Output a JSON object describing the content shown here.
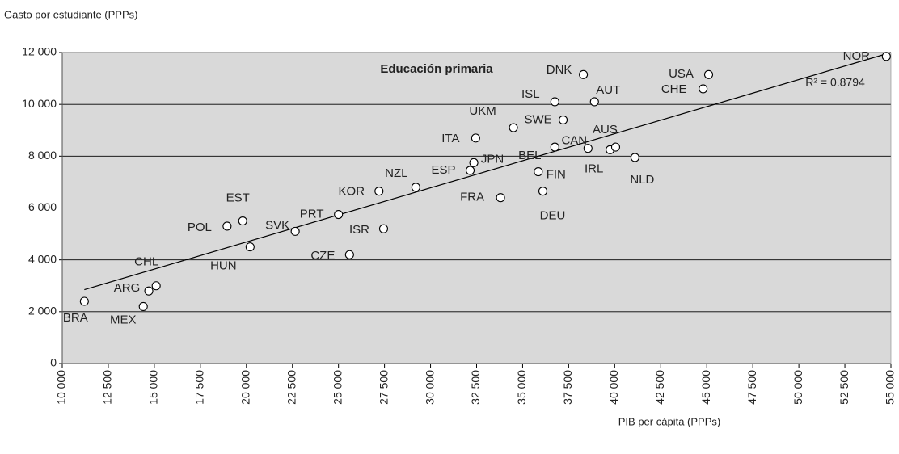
{
  "chart_data": {
    "type": "scatter",
    "y_axis_label": "Gasto por estudiante (PPPs)",
    "x_axis_label": "PIB per cápita (PPPs)",
    "subtitle": "Educación primaria",
    "r2_label": "R² = 0.8794",
    "color": "#ffffff",
    "background": "#d9d9d9",
    "grid": true,
    "labels": [
      "BRA",
      "MEX",
      "ARG",
      "CHL",
      "POL",
      "EST",
      "HUN",
      "SVK",
      "PRT",
      "CZE",
      "ISR",
      "KOR",
      "NZL",
      "ESP",
      "JPN",
      "ITA",
      "FRA",
      "UKM",
      "BEL",
      "FIN",
      "DEU",
      "CAN",
      "IRL",
      "AUS",
      "NLD",
      "SWE",
      "ISL",
      "AUT",
      "DNK",
      "CHE",
      "USA",
      "NOR"
    ],
    "x": [
      11200,
      14400,
      14700,
      15100,
      18950,
      19800,
      20200,
      22650,
      25000,
      25600,
      27450,
      27200,
      29200,
      32150,
      32350,
      32450,
      33800,
      34500,
      36750,
      35850,
      36100,
      38550,
      39750,
      40050,
      41100,
      37200,
      36750,
      38900,
      38300,
      44800,
      45100,
      54750
    ],
    "values": [
      2400,
      2200,
      2800,
      3000,
      5300,
      5500,
      4500,
      5100,
      5750,
      4200,
      5200,
      6650,
      6800,
      7450,
      7750,
      8700,
      6400,
      9100,
      8350,
      7400,
      6650,
      8300,
      8250,
      8350,
      7950,
      9400,
      10100,
      10100,
      11150,
      10600,
      11150,
      11850
    ],
    "trend": {
      "x": [
        11200,
        55000
      ],
      "values": [
        2850,
        12000
      ]
    },
    "xlim": [
      10000,
      55000
    ],
    "ylim": [
      0,
      12000
    ],
    "xticks": [
      {
        "value": 10000,
        "label": "10 000"
      },
      {
        "value": 12500,
        "label": "12 500"
      },
      {
        "value": 15000,
        "label": "15 000"
      },
      {
        "value": 17500,
        "label": "17 500"
      },
      {
        "value": 20000,
        "label": "20 000"
      },
      {
        "value": 22500,
        "label": "22 500"
      },
      {
        "value": 25000,
        "label": "25 000"
      },
      {
        "value": 27500,
        "label": "27 500"
      },
      {
        "value": 30000,
        "label": "30 000"
      },
      {
        "value": 32500,
        "label": "32 500"
      },
      {
        "value": 35000,
        "label": "35 000"
      },
      {
        "value": 37500,
        "label": "37 500"
      },
      {
        "value": 40000,
        "label": "40 000"
      },
      {
        "value": 42500,
        "label": "42 500"
      },
      {
        "value": 45000,
        "label": "45 000"
      },
      {
        "value": 47500,
        "label": "47 500"
      },
      {
        "value": 50000,
        "label": "50 000"
      },
      {
        "value": 52500,
        "label": "52 500"
      },
      {
        "value": 55000,
        "label": "55 000"
      }
    ],
    "yticks": [
      0,
      {
        "value": 2000,
        "label": "2 000"
      },
      {
        "value": 4000,
        "label": "4 000"
      },
      {
        "value": 6000,
        "label": "6 000"
      },
      {
        "value": 8000,
        "label": "8 000"
      },
      {
        "value": 10000,
        "label": "10 000"
      },
      {
        "value": 12000,
        "label": "12 000"
      }
    ]
  }
}
